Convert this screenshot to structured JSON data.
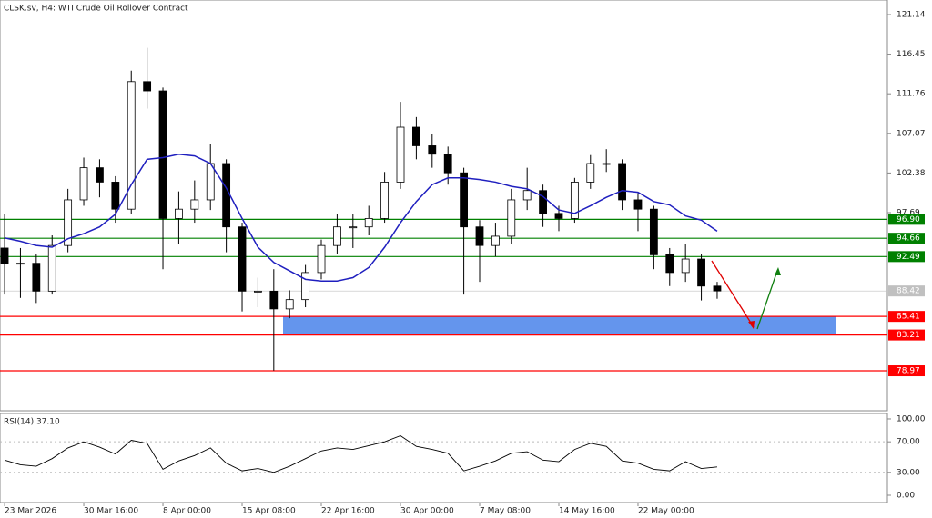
{
  "chart_data": [
    {
      "type": "candlestick",
      "title": "CLSK.sv, H4:  WTI Crude Oil Rollover Contract",
      "xlim": [
        -0.29,
        55.75
      ],
      "xticks": [
        {
          "value": 0,
          "label": "23 Mar 2026"
        },
        {
          "value": 5,
          "label": "30 Mar 16:00"
        },
        {
          "value": 10,
          "label": "8 Apr 00:00"
        },
        {
          "value": 15,
          "label": "15 Apr 08:00"
        },
        {
          "value": 20,
          "label": "22 Apr 16:00"
        },
        {
          "value": 25,
          "label": "30 Apr 00:00"
        },
        {
          "value": 30,
          "label": "7 May 08:00"
        },
        {
          "value": 35,
          "label": "14 May 16:00"
        },
        {
          "value": 40,
          "label": "22 May 00:00"
        }
      ],
      "ylim": [
        74.24,
        122.86
      ],
      "yticks": [
        97.69,
        102.38,
        107.07,
        111.76,
        116.45,
        121.14
      ],
      "up_color": "#ffffff",
      "down_color": "#000000",
      "ohlc": [
        [
          93.5,
          97.5,
          88.0,
          91.7
        ],
        [
          91.7,
          93.5,
          87.6,
          91.7
        ],
        [
          91.7,
          92.8,
          87.0,
          88.4
        ],
        [
          88.4,
          95.0,
          88.0,
          93.8
        ],
        [
          93.8,
          100.5,
          93.0,
          99.2
        ],
        [
          99.2,
          104.2,
          98.5,
          103.0
        ],
        [
          103.0,
          104.0,
          99.5,
          101.3
        ],
        [
          101.3,
          102.0,
          96.5,
          98.1
        ],
        [
          98.1,
          114.5,
          97.5,
          113.2
        ],
        [
          113.2,
          117.2,
          110.0,
          112.1
        ],
        [
          112.1,
          112.5,
          91.0,
          97.0
        ],
        [
          97.0,
          100.2,
          94.0,
          98.1
        ],
        [
          98.1,
          101.5,
          96.5,
          99.2
        ],
        [
          99.2,
          105.8,
          98.0,
          103.5
        ],
        [
          103.5,
          104.0,
          93.0,
          96.0
        ],
        [
          96.0,
          96.5,
          86.0,
          88.4
        ],
        [
          88.4,
          90.0,
          86.5,
          88.4
        ],
        [
          88.4,
          91.0,
          79.0,
          86.3
        ],
        [
          86.3,
          88.5,
          85.2,
          87.4
        ],
        [
          87.4,
          91.5,
          86.5,
          90.6
        ],
        [
          90.6,
          94.5,
          89.8,
          93.8
        ],
        [
          93.8,
          97.5,
          92.8,
          96.0
        ],
        [
          96.0,
          97.5,
          93.5,
          96.0
        ],
        [
          96.0,
          98.5,
          95.0,
          97.0
        ],
        [
          97.0,
          102.5,
          96.5,
          101.3
        ],
        [
          101.3,
          110.8,
          100.5,
          107.8
        ],
        [
          107.8,
          109.0,
          104.0,
          105.6
        ],
        [
          105.6,
          107.0,
          103.0,
          104.6
        ],
        [
          104.6,
          105.5,
          101.0,
          102.4
        ],
        [
          102.4,
          103.0,
          88.0,
          96.0
        ],
        [
          96.0,
          96.8,
          89.5,
          93.8
        ],
        [
          93.8,
          96.5,
          92.5,
          94.9
        ],
        [
          94.9,
          100.5,
          94.0,
          99.2
        ],
        [
          99.2,
          103.0,
          98.0,
          100.3
        ],
        [
          100.3,
          101.0,
          96.0,
          97.6
        ],
        [
          97.6,
          98.5,
          95.5,
          97.0
        ],
        [
          97.0,
          101.8,
          96.5,
          101.3
        ],
        [
          101.3,
          104.5,
          100.5,
          103.5
        ],
        [
          103.5,
          105.2,
          102.5,
          103.5
        ],
        [
          103.5,
          104.0,
          98.0,
          99.2
        ],
        [
          99.2,
          100.0,
          95.5,
          98.1
        ],
        [
          98.1,
          98.5,
          91.0,
          92.7
        ],
        [
          92.7,
          93.5,
          89.0,
          90.6
        ],
        [
          90.6,
          94.0,
          89.5,
          92.2
        ],
        [
          92.2,
          92.8,
          87.3,
          89.0
        ],
        [
          89.0,
          89.5,
          87.5,
          88.42
        ]
      ],
      "moving_average": {
        "color": "#1f1fbf",
        "values": [
          94.7,
          94.3,
          93.8,
          93.6,
          94.6,
          95.2,
          96.0,
          97.5,
          101.0,
          104.0,
          104.2,
          104.6,
          104.4,
          103.5,
          100.6,
          97.0,
          93.6,
          91.8,
          90.8,
          89.8,
          89.6,
          89.6,
          90.0,
          91.2,
          93.6,
          96.5,
          99.0,
          101.0,
          101.8,
          101.8,
          101.6,
          101.3,
          100.8,
          100.5,
          99.6,
          98.0,
          97.6,
          98.5,
          99.5,
          100.3,
          100.1,
          99.0,
          98.6,
          97.3,
          96.8,
          95.5
        ]
      },
      "levels": [
        {
          "value": 96.9,
          "label": "96.90",
          "color": "#008000"
        },
        {
          "value": 94.66,
          "color": "#008000"
        },
        {
          "value": 92.49,
          "color": "#008000"
        },
        {
          "value": 88.42,
          "color": "#c0c0c0"
        },
        {
          "value": 85.41,
          "color": "#ff0000"
        },
        {
          "value": 83.21,
          "color": "#ff0000"
        },
        {
          "value": 78.97,
          "color": "#ff0000"
        }
      ],
      "zone_color": "#6495ed"
    },
    {
      "type": "line",
      "title": "RSI(14) 37.10",
      "color": "#000000",
      "ylim": [
        -9.5,
        107.1
      ],
      "yticks": [
        {
          "value": 0,
          "label": "0.00"
        },
        {
          "value": 30,
          "label": "30.00"
        },
        {
          "value": 70,
          "label": "70.00"
        },
        {
          "value": 100,
          "label": "100.00"
        }
      ],
      "values": [
        46,
        40,
        38,
        48,
        62,
        70,
        63,
        54,
        72,
        68,
        34,
        45,
        52,
        62,
        42,
        32,
        35,
        30,
        38,
        48,
        58,
        62,
        60,
        65,
        70,
        78,
        64,
        60,
        55,
        32,
        38,
        45,
        55,
        57,
        46,
        44,
        60,
        68,
        64,
        45,
        42,
        34,
        32,
        44,
        35,
        37.1
      ]
    }
  ]
}
